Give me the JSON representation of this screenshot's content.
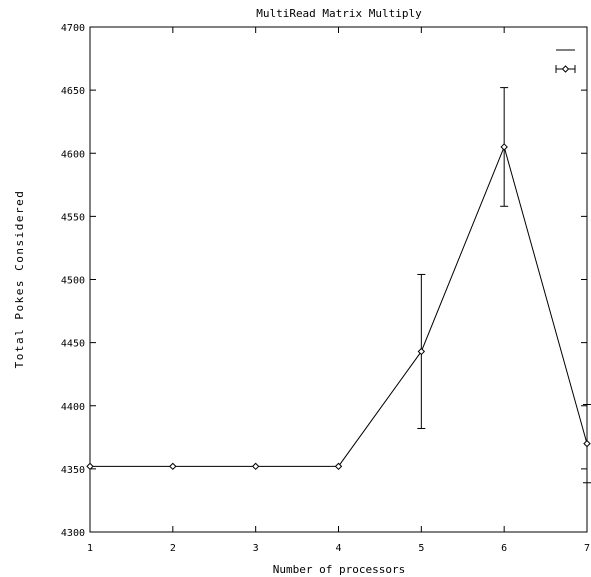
{
  "chart_data": {
    "type": "line",
    "title": "MultiRead Matrix Multiply",
    "xlabel": "Number of processors",
    "ylabel": "Total Pokes Considered",
    "xlim": [
      1,
      7
    ],
    "ylim": [
      4300,
      4700
    ],
    "x_ticks": [
      "1",
      "2",
      "3",
      "4",
      "5",
      "6",
      "7"
    ],
    "y_ticks": [
      "4300",
      "4350",
      "4400",
      "4450",
      "4500",
      "4550",
      "4600",
      "4650",
      "4700"
    ],
    "grid": false,
    "legend_position": "top-right",
    "series": [
      {
        "marker": "diamond",
        "error_bars": true,
        "x": [
          1,
          2,
          3,
          4,
          5,
          6,
          7
        ],
        "y": [
          4352,
          4352,
          4352,
          4352,
          4443,
          4605,
          4370
        ],
        "y_low": [
          4352,
          4352,
          4352,
          4352,
          4382,
          4558,
          4339
        ],
        "y_high": [
          4352,
          4352,
          4352,
          4352,
          4504,
          4652,
          4401
        ]
      }
    ]
  }
}
